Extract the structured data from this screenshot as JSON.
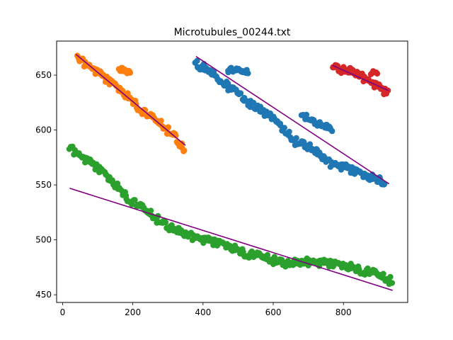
{
  "chart_data": {
    "type": "scatter",
    "title": "Microtubules_00244.txt",
    "xlabel": "",
    "ylabel": "",
    "xlim": [
      -17,
      983
    ],
    "ylim": [
      443,
      681
    ],
    "xticks": [
      0,
      200,
      400,
      600,
      800
    ],
    "yticks": [
      450,
      500,
      550,
      600,
      650
    ],
    "grid": false,
    "legend": false,
    "fit_line_color": "#800080",
    "series": [
      {
        "name": "blue cluster",
        "color": "#1f77b4",
        "anchors": [
          [
            378,
            660
          ],
          [
            420,
            655
          ],
          [
            470,
            640
          ],
          [
            530,
            625
          ],
          [
            600,
            610
          ],
          [
            660,
            590
          ],
          [
            700,
            585
          ],
          [
            760,
            570
          ],
          [
            810,
            565
          ],
          [
            860,
            558
          ],
          [
            920,
            553
          ]
        ],
        "side_segments": [
          {
            "anchors": [
              [
                470,
                655
              ],
              [
                530,
                652
              ]
            ]
          },
          {
            "anchors": [
              [
                680,
                615
              ],
              [
                710,
                608
              ],
              [
                770,
                600
              ]
            ]
          }
        ],
        "fit_line": [
          [
            380,
            667
          ],
          [
            930,
            551
          ]
        ]
      },
      {
        "name": "orange cluster",
        "color": "#ff7f0e",
        "anchors": [
          [
            40,
            666
          ],
          [
            80,
            657
          ],
          [
            120,
            647
          ],
          [
            160,
            637
          ],
          [
            200,
            626
          ],
          [
            240,
            614
          ],
          [
            280,
            605
          ],
          [
            320,
            594
          ],
          [
            350,
            579
          ]
        ],
        "side_segments": [
          {
            "anchors": [
              [
                160,
                655
              ],
              [
                195,
                652
              ]
            ]
          }
        ],
        "fit_line": [
          [
            38,
            669
          ],
          [
            350,
            586
          ]
        ]
      },
      {
        "name": "green cluster",
        "color": "#2ca02c",
        "anchors": [
          [
            20,
            584
          ],
          [
            60,
            574
          ],
          [
            100,
            565
          ],
          [
            140,
            553
          ],
          [
            180,
            540
          ],
          [
            220,
            530
          ],
          [
            260,
            521
          ],
          [
            300,
            512
          ],
          [
            340,
            506
          ],
          [
            400,
            500
          ],
          [
            460,
            495
          ],
          [
            520,
            488
          ],
          [
            580,
            483
          ],
          [
            640,
            478
          ],
          [
            700,
            480
          ],
          [
            760,
            478
          ],
          [
            820,
            475
          ],
          [
            880,
            470
          ],
          [
            940,
            462
          ]
        ],
        "fit_line": [
          [
            20,
            547
          ],
          [
            940,
            454
          ]
        ]
      },
      {
        "name": "red cluster",
        "color": "#d62728",
        "anchors": [
          [
            768,
            658
          ],
          [
            790,
            655
          ],
          [
            810,
            654
          ],
          [
            840,
            651
          ],
          [
            860,
            647
          ],
          [
            890,
            641
          ],
          [
            910,
            636
          ],
          [
            928,
            633
          ]
        ],
        "side_segments": [
          {
            "anchors": [
              [
                880,
                652
              ],
              [
                900,
                650
              ]
            ]
          }
        ],
        "fit_line": [
          [
            768,
            659
          ],
          [
            928,
            636
          ]
        ]
      }
    ]
  }
}
